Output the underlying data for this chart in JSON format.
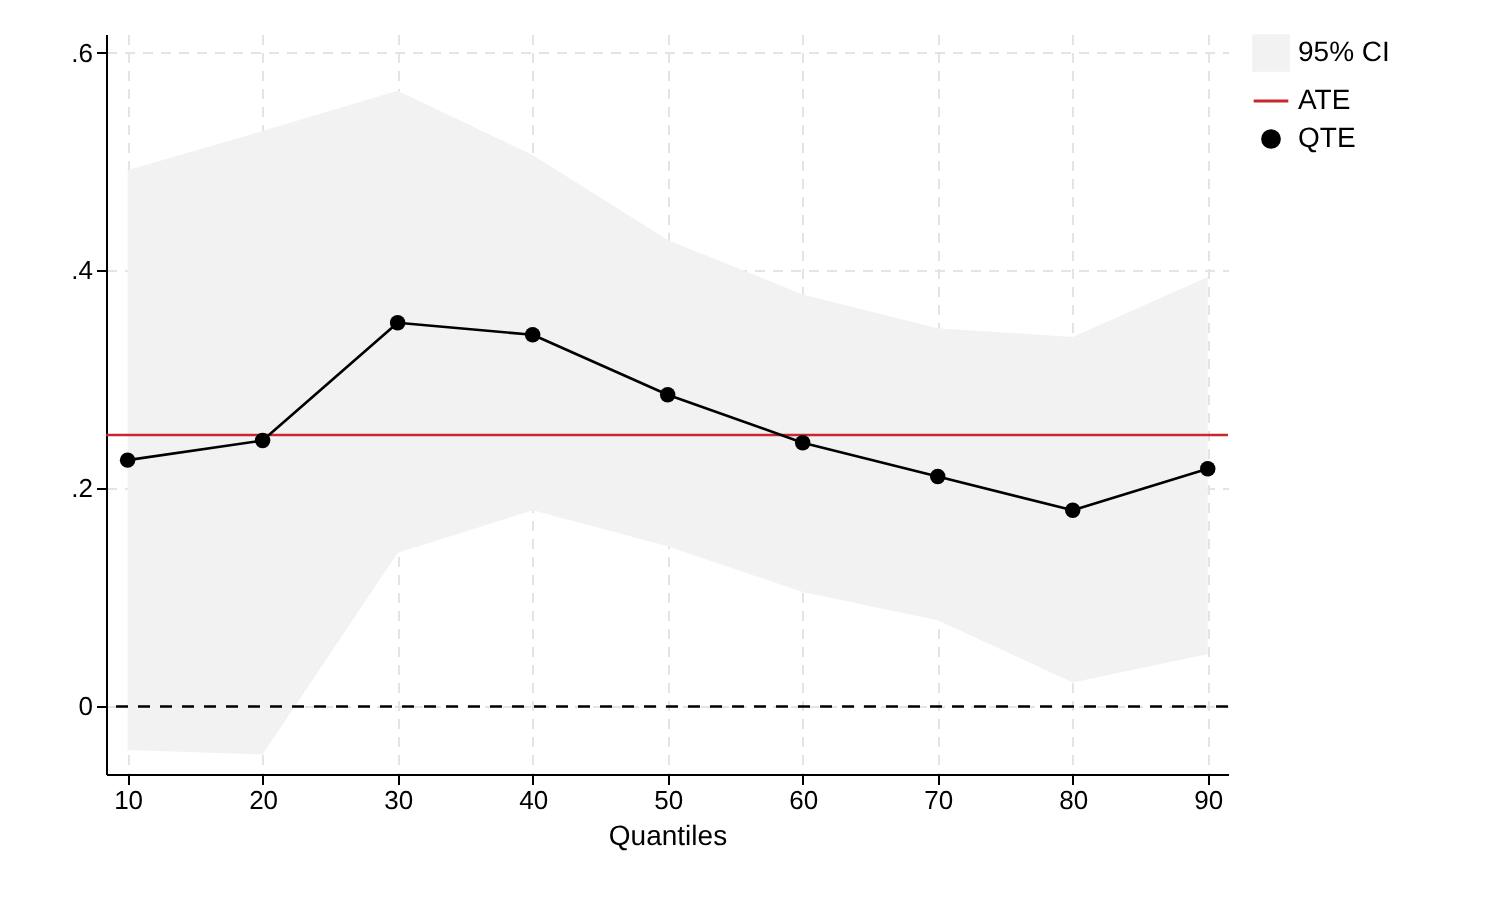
{
  "chart_data": {
    "type": "line",
    "xlabel": "Quantiles",
    "x": [
      10,
      20,
      30,
      40,
      50,
      60,
      70,
      80,
      90
    ],
    "series": [
      {
        "name": "95% CI",
        "type": "area",
        "color": "#f2f2f2",
        "values": [
          null,
          null,
          null,
          null,
          null,
          null,
          null,
          null,
          null
        ],
        "lower": [
          -0.04,
          -0.044,
          0.141,
          0.18,
          0.147,
          0.105,
          0.079,
          0.022,
          0.048
        ],
        "upper": [
          0.492,
          0.528,
          0.565,
          0.506,
          0.428,
          0.378,
          0.347,
          0.339,
          0.394
        ]
      },
      {
        "name": "QTE",
        "type": "line",
        "color": "#000000",
        "values": [
          0.226,
          0.244,
          0.352,
          0.341,
          0.286,
          0.242,
          0.211,
          0.18,
          0.218
        ]
      }
    ],
    "ref_lines": [
      {
        "axis": "y",
        "value": 0,
        "color": "#000000",
        "line_style": "dashed"
      },
      {
        "axis": "y",
        "value": 0.249,
        "label": "ATE",
        "color": "#c8282d"
      }
    ],
    "xlim": [
      8.4,
      91.5
    ],
    "xticks": [
      10,
      20,
      30,
      40,
      50,
      60,
      70,
      80,
      90
    ],
    "ylim": [
      -0.062,
      0.617
    ],
    "yticks": [
      {
        "value": 0,
        "label": "0"
      },
      {
        "value": 0.2,
        "label": ".2"
      },
      {
        "value": 0.4,
        "label": ".4"
      },
      {
        "value": 0.6,
        "label": ".6"
      }
    ],
    "grid": true,
    "legend": "right",
    "marker": "circle",
    "line_style": "solid"
  }
}
